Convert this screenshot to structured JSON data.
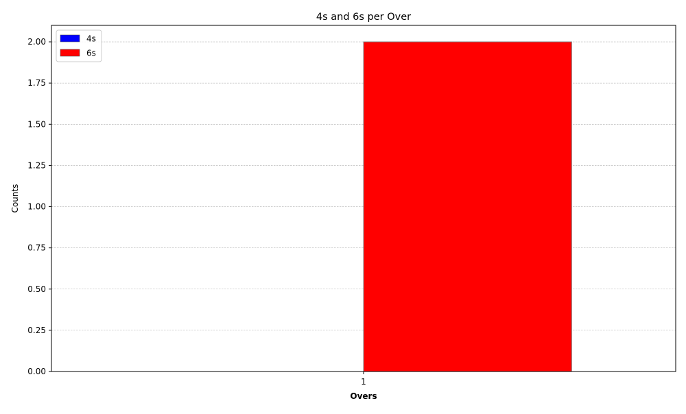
{
  "chart_data": {
    "type": "bar",
    "title": "4s and 6s per Over",
    "xlabel": "Overs",
    "ylabel": "Counts",
    "categories": [
      "1"
    ],
    "series": [
      {
        "name": "4s",
        "values": [
          0
        ],
        "color": "#0000ff"
      },
      {
        "name": "6s",
        "values": [
          2
        ],
        "color": "#ff0000"
      }
    ],
    "ylim": [
      0,
      2.1
    ],
    "yticks": [
      0,
      0.25,
      0.5,
      0.75,
      1.0,
      1.25,
      1.5,
      1.75,
      2.0
    ],
    "ytick_labels": [
      "0.00",
      "0.25",
      "0.50",
      "0.75",
      "1.00",
      "1.25",
      "1.50",
      "1.75",
      "2.00"
    ],
    "grid": "y",
    "legend": "top-left"
  }
}
